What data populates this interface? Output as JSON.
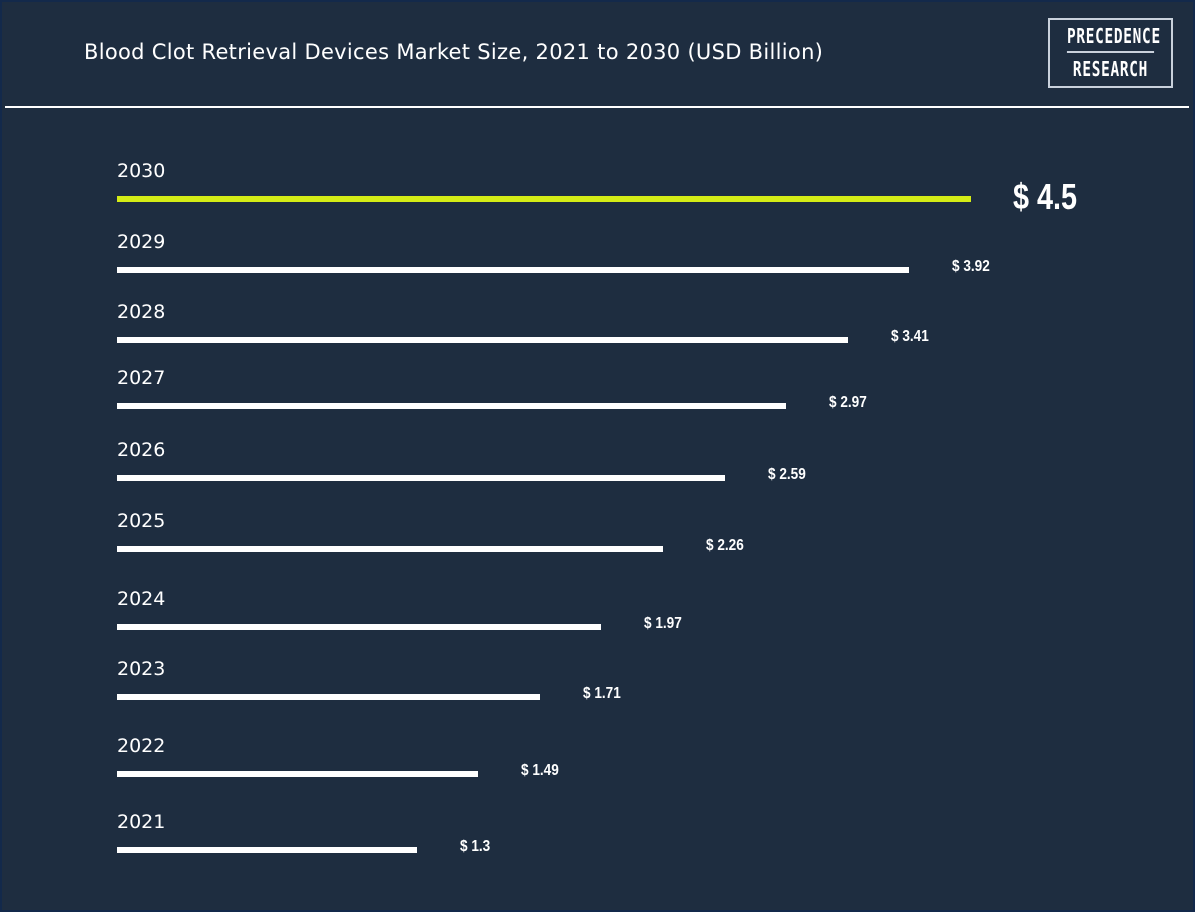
{
  "header": {
    "title": "Blood Clot Retrieval Devices Market Size, 2021 to 2030 (USD Billion)",
    "logo_line1": "PRECEDENCE",
    "logo_line2": "RESEARCH"
  },
  "colors": {
    "background": "#1e2d40",
    "bar": "#ffffff",
    "highlight": "#d4ec16"
  },
  "chart_data": {
    "type": "bar",
    "orientation": "horizontal",
    "title": "Blood Clot Retrieval Devices Market Size, 2021 to 2030 (USD Billion)",
    "xlabel": "",
    "ylabel": "",
    "categories": [
      "2030",
      "2029",
      "2028",
      "2027",
      "2026",
      "2025",
      "2024",
      "2023",
      "2022",
      "2021"
    ],
    "values": [
      4.5,
      3.92,
      3.41,
      2.97,
      2.59,
      2.26,
      1.97,
      1.71,
      1.49,
      1.3
    ],
    "labels": [
      "$ 4.5",
      "$ 3.92",
      "$ 3.41",
      "$ 2.97",
      "$ 2.59",
      "$ 2.26",
      "$ 1.97",
      "$ 1.71",
      "$ 1.49",
      "$ 1.3"
    ],
    "highlight": "2030"
  }
}
